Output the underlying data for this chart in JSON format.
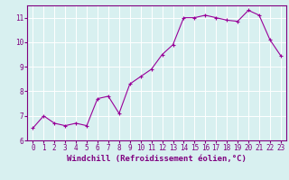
{
  "x": [
    0,
    1,
    2,
    3,
    4,
    5,
    6,
    7,
    8,
    9,
    10,
    11,
    12,
    13,
    14,
    15,
    16,
    17,
    18,
    19,
    20,
    21,
    22,
    23
  ],
  "y": [
    6.5,
    7.0,
    6.7,
    6.6,
    6.7,
    6.6,
    7.7,
    7.8,
    7.1,
    8.3,
    8.6,
    8.9,
    9.5,
    9.9,
    11.0,
    11.0,
    11.1,
    11.0,
    10.9,
    10.85,
    11.3,
    11.1,
    10.1,
    9.45
  ],
  "line_color": "#990099",
  "marker": "+",
  "markersize": 3,
  "linewidth": 0.8,
  "bg_color": "#d8f0f0",
  "grid_color": "#ffffff",
  "xlabel": "Windchill (Refroidissement éolien,°C)",
  "xlabel_color": "#800080",
  "tick_color": "#800080",
  "ylim": [
    6.0,
    11.5
  ],
  "xlim": [
    -0.5,
    23.5
  ],
  "yticks": [
    6,
    7,
    8,
    9,
    10,
    11
  ],
  "xticks": [
    0,
    1,
    2,
    3,
    4,
    5,
    6,
    7,
    8,
    9,
    10,
    11,
    12,
    13,
    14,
    15,
    16,
    17,
    18,
    19,
    20,
    21,
    22,
    23
  ],
  "xtick_labels": [
    "0",
    "1",
    "2",
    "3",
    "4",
    "5",
    "6",
    "7",
    "8",
    "9",
    "10",
    "11",
    "12",
    "13",
    "14",
    "15",
    "16",
    "17",
    "18",
    "19",
    "20",
    "21",
    "22",
    "23"
  ],
  "tick_fontsize": 5.5,
  "xlabel_fontsize": 6.5,
  "spine_color": "#800080"
}
